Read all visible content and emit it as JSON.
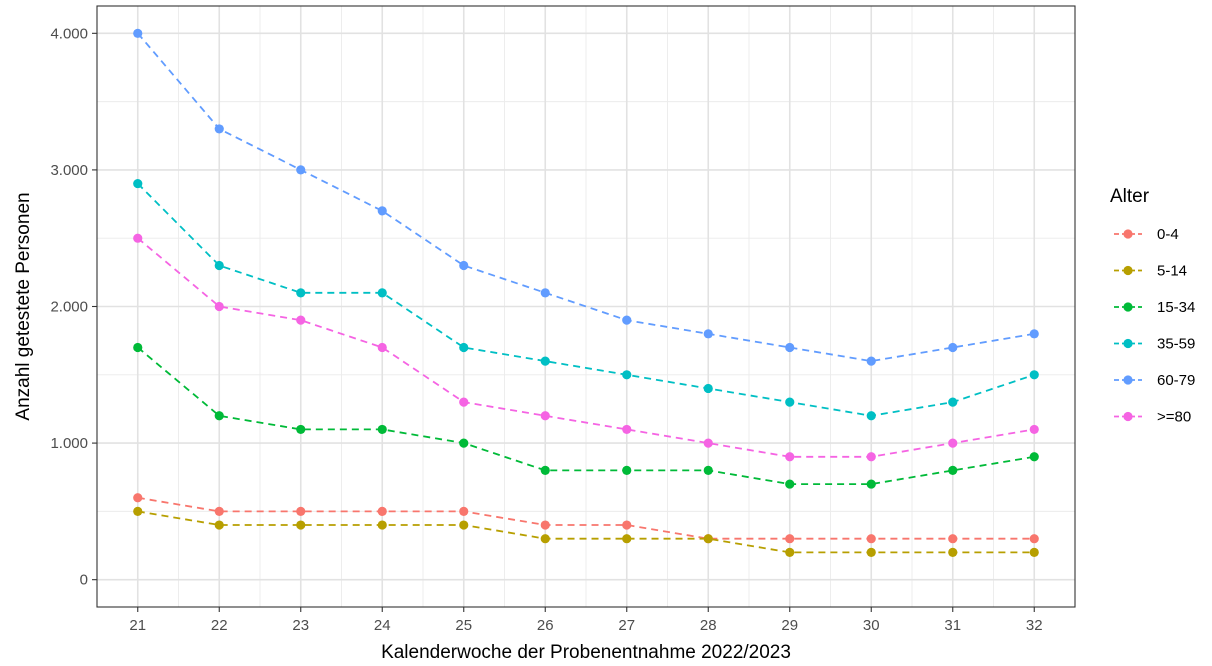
{
  "chart_data": {
    "type": "line",
    "xlabel": "Kalenderwoche der Probenentnahme 2022/2023",
    "ylabel": "Anzahl getestete Personen",
    "x": [
      21,
      22,
      23,
      24,
      25,
      26,
      27,
      28,
      29,
      30,
      31,
      32
    ],
    "xlim": [
      20.5,
      32.5
    ],
    "ylim": [
      -200,
      4200
    ],
    "y_ticks": [
      0,
      1000,
      2000,
      3000,
      4000
    ],
    "y_tick_labels": [
      "0",
      "1.000",
      "2.000",
      "3.000",
      "4.000"
    ],
    "x_tick_labels": [
      "21",
      "22",
      "23",
      "24",
      "25",
      "26",
      "27",
      "28",
      "29",
      "30",
      "31",
      "32"
    ],
    "grid": true,
    "line_style": "dashed",
    "legend": {
      "title": "Alter",
      "position": "right"
    },
    "series": [
      {
        "name": "0-4",
        "color": "#F8766D",
        "values": [
          600,
          500,
          500,
          500,
          500,
          400,
          400,
          300,
          300,
          300,
          300,
          300
        ]
      },
      {
        "name": "5-14",
        "color": "#B79F00",
        "values": [
          500,
          400,
          400,
          400,
          400,
          300,
          300,
          300,
          200,
          200,
          200,
          200
        ]
      },
      {
        "name": "15-34",
        "color": "#00BA38",
        "values": [
          1700,
          1200,
          1100,
          1100,
          1000,
          800,
          800,
          800,
          700,
          700,
          800,
          900
        ]
      },
      {
        "name": "35-59",
        "color": "#00BFC4",
        "values": [
          2900,
          2300,
          2100,
          2100,
          1700,
          1600,
          1500,
          1400,
          1300,
          1200,
          1300,
          1500
        ]
      },
      {
        "name": "60-79",
        "color": "#619CFF",
        "values": [
          4000,
          3300,
          3000,
          2700,
          2300,
          2100,
          1900,
          1800,
          1700,
          1600,
          1700,
          1800
        ]
      },
      {
        "name": ">=80",
        "color": "#F564E3",
        "values": [
          2500,
          2000,
          1900,
          1700,
          1300,
          1200,
          1100,
          1000,
          900,
          900,
          1000,
          1100
        ]
      }
    ]
  }
}
